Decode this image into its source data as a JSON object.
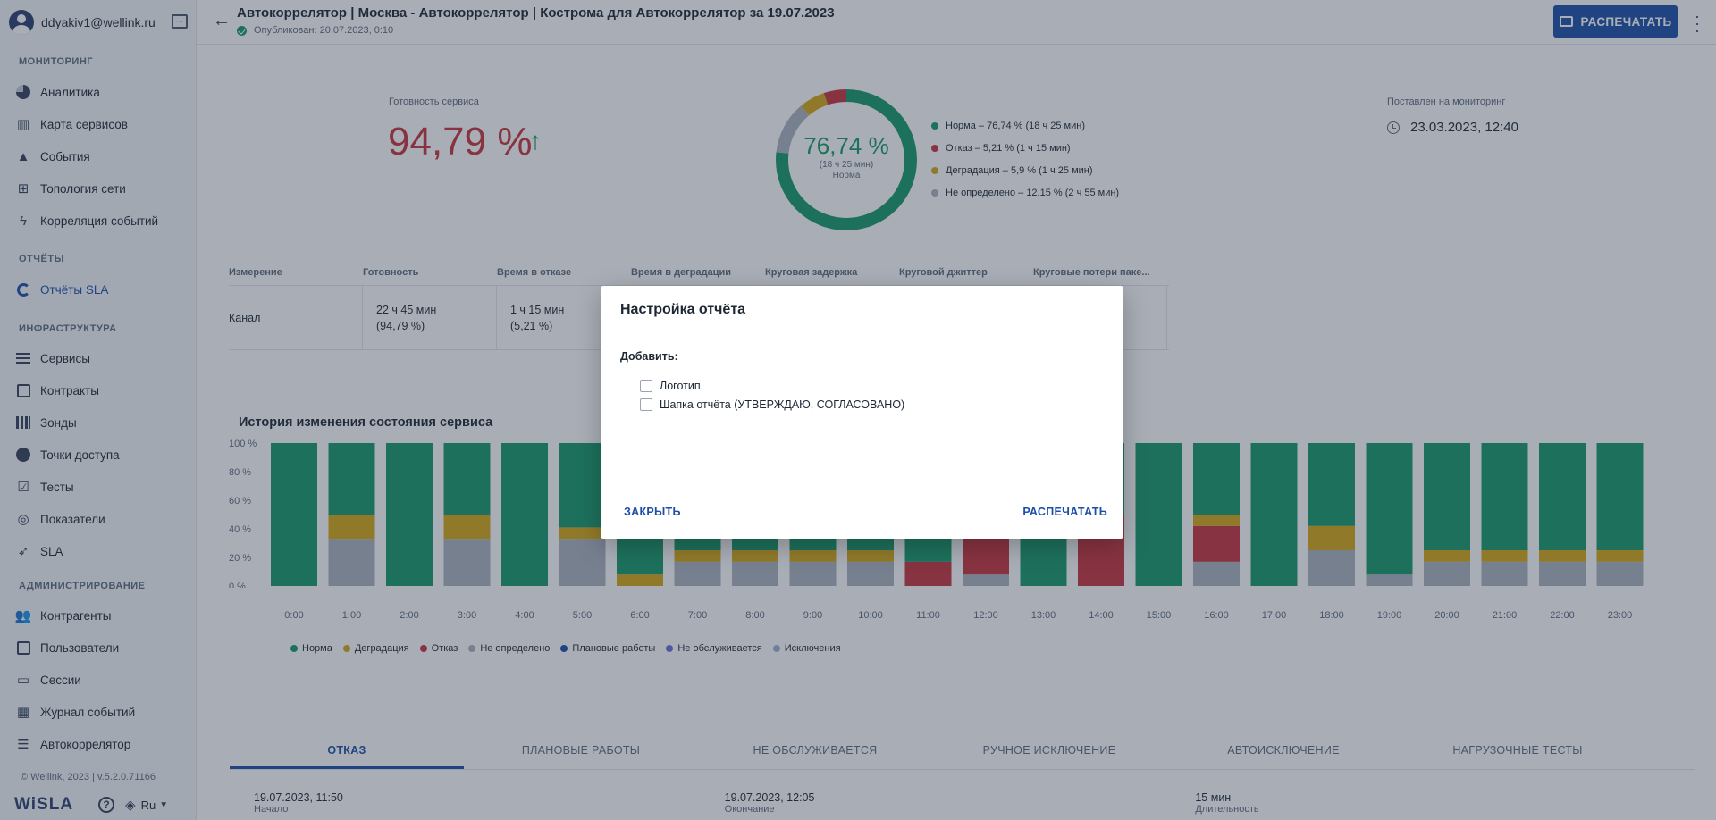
{
  "user": {
    "email": "ddyakiv1@wellink.ru"
  },
  "sidebar": {
    "sections": [
      {
        "title": "МОНИТОРИНГ",
        "items": [
          {
            "label": "Аналитика",
            "icon": "pie-chart-icon"
          },
          {
            "label": "Карта сервисов",
            "icon": "map-icon"
          },
          {
            "label": "События",
            "icon": "warning-icon"
          },
          {
            "label": "Топология сети",
            "icon": "topology-icon"
          },
          {
            "label": "Корреляция событий",
            "icon": "lightning-icon"
          }
        ]
      },
      {
        "title": "ОТЧЁТЫ",
        "items": [
          {
            "label": "Отчёты SLA",
            "icon": "reports-icon",
            "active": true
          }
        ]
      },
      {
        "title": "ИНФРАСТРУКТУРА",
        "items": [
          {
            "label": "Сервисы",
            "icon": "list-icon"
          },
          {
            "label": "Контракты",
            "icon": "document-icon"
          },
          {
            "label": "Зонды",
            "icon": "probe-icon"
          },
          {
            "label": "Точки доступа",
            "icon": "access-point-icon"
          },
          {
            "label": "Тесты",
            "icon": "clipboard-check-icon"
          },
          {
            "label": "Показатели",
            "icon": "metrics-icon"
          },
          {
            "label": "SLA",
            "icon": "rocket-icon"
          }
        ]
      },
      {
        "title": "АДМИНИСТРИРОВАНИЕ",
        "items": [
          {
            "label": "Контрагенты",
            "icon": "people-icon"
          },
          {
            "label": "Пользователи",
            "icon": "user-card-icon"
          },
          {
            "label": "Сессии",
            "icon": "browser-icon"
          },
          {
            "label": "Журнал событий",
            "icon": "calendar-icon"
          },
          {
            "label": "Автокоррелятор",
            "icon": "sliders-icon"
          }
        ]
      }
    ],
    "footer": {
      "copyright": "© Wellink, 2023 | v.5.2.0.71166",
      "logo": "WiSLA",
      "help": "?",
      "language": "Ru"
    }
  },
  "header": {
    "title": "Автокоррелятор | Москва - Автокоррелятор | Кострома для Автокоррелятор за 19.07.2023",
    "published": "Опубликован: 20.07.2023, 0:10",
    "print_label": "РАСПЕЧАТАТЬ"
  },
  "summary": {
    "readiness_label": "Готовность сервиса",
    "readiness_value": "94,79 %",
    "donut_pct": "76,74 %",
    "donut_time": "(18 ч 25 мин)",
    "donut_status": "Норма",
    "monitor_label": "Поставлен на мониторинг",
    "monitor_value": "23.03.2023, 12:40",
    "legend": [
      {
        "label": "Норма – 76,74 % (18 ч 25 мин)",
        "color": "#16996a",
        "value": 76.74
      },
      {
        "label": "Отказ – 5,21 % (1 ч 15 мин)",
        "color": "#c8323d",
        "value": 5.21
      },
      {
        "label": "Деградация – 5,9 % (1 ч 25 мин)",
        "color": "#d6a816",
        "value": 5.9
      },
      {
        "label": "Не определено – 12,15 % (2 ч 55 мин)",
        "color": "#aab3bf",
        "value": 12.15
      }
    ]
  },
  "metrics_table": {
    "headers": [
      "Измерение",
      "Готовность",
      "Время в отказе",
      "Время в деградации",
      "Круговая задержка",
      "Круговой джиттер",
      "Круговые потери паке..."
    ],
    "rows": [
      [
        "Канал",
        "22 ч 45 мин\n(94,79 %)",
        "1 ч 15 мин\n(5,21 %)",
        "",
        "",
        "",
        ""
      ]
    ]
  },
  "history": {
    "title": "История изменения состояния сервиса",
    "legend": [
      {
        "label": "Норма",
        "color": "#16996a"
      },
      {
        "label": "Деградация",
        "color": "#d6a816"
      },
      {
        "label": "Отказ",
        "color": "#c8323d"
      },
      {
        "label": "Не определено",
        "color": "#aab3bf"
      },
      {
        "label": "Плановые работы",
        "color": "#1c4fa8"
      },
      {
        "label": "Не обслуживается",
        "color": "#6b6fd6"
      },
      {
        "label": "Исключения",
        "color": "#9bb1d6"
      }
    ]
  },
  "chart_data": {
    "type": "bar",
    "stacked": true,
    "categories": [
      "0:00",
      "1:00",
      "2:00",
      "3:00",
      "4:00",
      "5:00",
      "6:00",
      "7:00",
      "8:00",
      "9:00",
      "10:00",
      "11:00",
      "12:00",
      "13:00",
      "14:00",
      "15:00",
      "16:00",
      "17:00",
      "18:00",
      "19:00",
      "20:00",
      "21:00",
      "22:00",
      "23:00"
    ],
    "yticks": [
      "0 %",
      "20 %",
      "40 %",
      "60 %",
      "80 %",
      "100 %"
    ],
    "ylim": [
      0,
      100
    ],
    "grid": false,
    "series": [
      {
        "name": "Не определено",
        "color": "#aab3bf",
        "values": [
          0,
          33,
          0,
          33,
          0,
          33,
          0,
          17,
          17,
          17,
          17,
          0,
          8,
          0,
          0,
          0,
          17,
          0,
          25,
          8,
          17,
          17,
          17,
          17
        ]
      },
      {
        "name": "Отказ",
        "color": "#c8323d",
        "values": [
          0,
          0,
          0,
          0,
          0,
          0,
          0,
          0,
          0,
          0,
          0,
          17,
          42,
          0,
          50,
          0,
          25,
          0,
          0,
          0,
          0,
          0,
          0,
          0
        ]
      },
      {
        "name": "Деградация",
        "color": "#d6a816",
        "values": [
          0,
          17,
          0,
          17,
          0,
          8,
          8,
          8,
          8,
          8,
          8,
          0,
          0,
          0,
          0,
          0,
          8,
          0,
          17,
          0,
          8,
          8,
          8,
          8
        ]
      },
      {
        "name": "Норма",
        "color": "#16996a",
        "values": [
          100,
          50,
          100,
          50,
          100,
          59,
          92,
          75,
          75,
          75,
          75,
          83,
          50,
          100,
          50,
          100,
          50,
          100,
          58,
          92,
          75,
          75,
          75,
          75
        ]
      }
    ]
  },
  "tabs": [
    "ОТКАЗ",
    "ПЛАНОВЫЕ РАБОТЫ",
    "НЕ ОБСЛУЖИВАЕТСЯ",
    "РУЧНОЕ ИСКЛЮЧЕНИЕ",
    "АВТОИСКЛЮЧЕНИЕ",
    "НАГРУЗОЧНЫЕ ТЕСТЫ"
  ],
  "incidents": {
    "headers": [
      "Начало",
      "Окончание",
      "Длительность"
    ],
    "rows": [
      [
        "19.07.2023, 11:50",
        "19.07.2023, 12:05",
        "15 мин"
      ]
    ]
  },
  "dialog": {
    "title": "Настройка отчёта",
    "add_label": "Добавить:",
    "options": [
      {
        "label": "Логотип",
        "checked": false
      },
      {
        "label": "Шапка отчёта (УТВЕРЖДАЮ, СОГЛАСОВАНО)",
        "checked": false
      }
    ],
    "close_label": "ЗАКРЫТЬ",
    "print_label": "РАСПЕЧАТАТЬ"
  }
}
